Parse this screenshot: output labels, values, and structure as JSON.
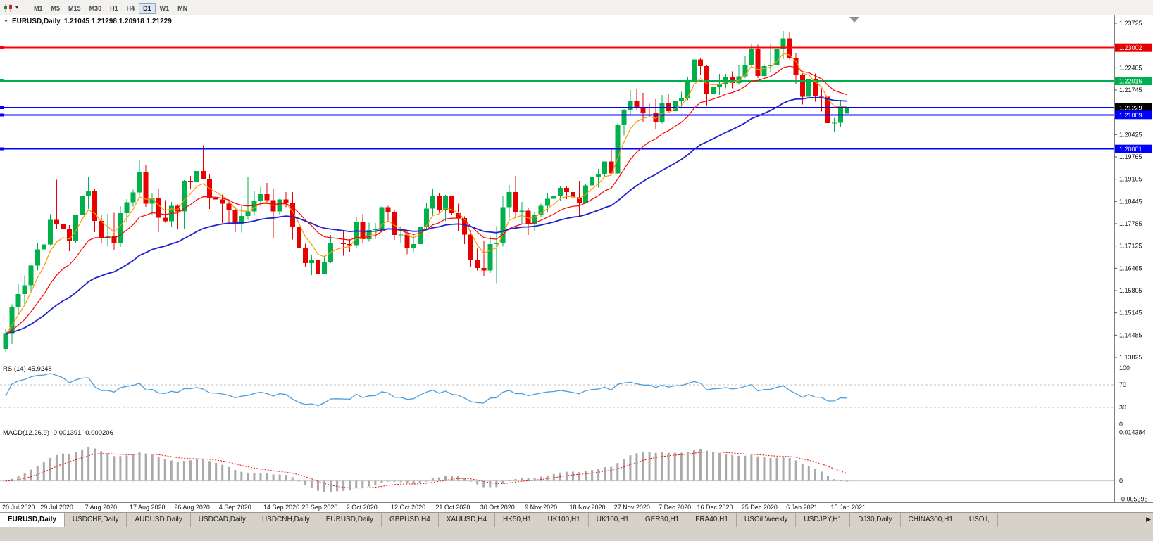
{
  "toolbar": {
    "dropdown_icon": "▾",
    "periods": [
      {
        "label": "M1",
        "active": false
      },
      {
        "label": "M5",
        "active": false
      },
      {
        "label": "M15",
        "active": false
      },
      {
        "label": "M30",
        "active": false
      },
      {
        "label": "H1",
        "active": false
      },
      {
        "label": "H4",
        "active": false
      },
      {
        "label": "D1",
        "active": true
      },
      {
        "label": "W1",
        "active": false
      },
      {
        "label": "MN",
        "active": false
      }
    ]
  },
  "chart": {
    "menu_icon": "▼",
    "title": "EURUSD,Daily",
    "ohlc": "1.21045 1.21298 1.20918 1.21229"
  },
  "rsi_panel": {
    "label": "RSI(14) 45,9248"
  },
  "macd_panel": {
    "label": "MACD(12,26,9) -0.001391 -0.000206"
  },
  "tab_bar": {
    "scroll_right_icon": "▶",
    "tabs": [
      {
        "label": "EURUSD,Daily",
        "active": true
      },
      {
        "label": "USDCHF,Daily",
        "active": false
      },
      {
        "label": "AUDUSD,Daily",
        "active": false
      },
      {
        "label": "USDCAD,Daily",
        "active": false
      },
      {
        "label": "USDCNH,Daily",
        "active": false
      },
      {
        "label": "EURUSD,Daily",
        "active": false
      },
      {
        "label": "GBPUSD,H4",
        "active": false
      },
      {
        "label": "XAUUSD,H4",
        "active": false
      },
      {
        "label": "HK50,H1",
        "active": false
      },
      {
        "label": "UK100,H1",
        "active": false
      },
      {
        "label": "UK100,H1",
        "active": false
      },
      {
        "label": "GER30,H1",
        "active": false
      },
      {
        "label": "FRA40,H1",
        "active": false
      },
      {
        "label": "USOil,Weekly",
        "active": false
      },
      {
        "label": "USDJPY,H1",
        "active": false
      },
      {
        "label": "DJ30,Daily",
        "active": false
      },
      {
        "label": "CHINA300,H1",
        "active": false
      },
      {
        "label": "USOil,",
        "active": false
      }
    ]
  },
  "chart_data": {
    "type": "candlestick",
    "symbol": "EURUSD",
    "timeframe": "Daily",
    "last_price": 1.21229,
    "ylim": [
      1.137,
      1.2395
    ],
    "colors": {
      "up": "#00b04a",
      "down": "#e60000",
      "background": "#ffffff"
    },
    "x_labels": [
      {
        "label": "20 Jul 2020",
        "index": 0
      },
      {
        "label": "29 Jul 2020",
        "index": 6
      },
      {
        "label": "7 Aug 2020",
        "index": 13
      },
      {
        "label": "17 Aug 2020",
        "index": 20
      },
      {
        "label": "26 Aug 2020",
        "index": 27
      },
      {
        "label": "4 Sep 2020",
        "index": 34
      },
      {
        "label": "14 Sep 2020",
        "index": 41
      },
      {
        "label": "23 Sep 2020",
        "index": 47
      },
      {
        "label": "2 Oct 2020",
        "index": 54
      },
      {
        "label": "12 Oct 2020",
        "index": 61
      },
      {
        "label": "21 Oct 2020",
        "index": 68
      },
      {
        "label": "30 Oct 2020",
        "index": 75
      },
      {
        "label": "9 Nov 2020",
        "index": 82
      },
      {
        "label": "18 Nov 2020",
        "index": 89
      },
      {
        "label": "27 Nov 2020",
        "index": 96
      },
      {
        "label": "7 Dec 2020",
        "index": 103
      },
      {
        "label": "16 Dec 2020",
        "index": 109
      },
      {
        "label": "25 Dec 2020",
        "index": 116
      },
      {
        "label": "6 Jan 2021",
        "index": 123
      },
      {
        "label": "15 Jan 2021",
        "index": 130
      }
    ],
    "y_ticks": [
      "1.23725",
      "1.22405",
      "1.21745",
      "1.20425",
      "1.19765",
      "1.19105",
      "1.18445",
      "1.17785",
      "1.17125",
      "1.16465",
      "1.15805",
      "1.15145",
      "1.14485",
      "1.13825"
    ],
    "price_markers": [
      {
        "label": "1.23002",
        "color": "#e60000"
      },
      {
        "label": "1.22016",
        "color": "#00b050"
      },
      {
        "label": "1.21229",
        "color": "#000000"
      },
      {
        "label": "1.21009",
        "color": "#0000ff"
      },
      {
        "label": "1.20001",
        "color": "#0000ff"
      }
    ],
    "hlines": [
      {
        "price": 1.23002,
        "color": "#ff0000",
        "width": 2
      },
      {
        "price": 1.22016,
        "color": "#00b050",
        "width": 2
      },
      {
        "price": 1.2122,
        "color": "#0000ff",
        "width": 2
      },
      {
        "price": 1.21009,
        "color": "#0000ff",
        "width": 2
      },
      {
        "price": 1.20001,
        "color": "#0000ff",
        "width": 2
      }
    ],
    "moving_averages": [
      {
        "name": "fast-ma",
        "period": 5,
        "color": "#ff9900",
        "width": 1.2
      },
      {
        "name": "medium-ma",
        "period": 13,
        "color": "#ff0000",
        "width": 1.2
      },
      {
        "name": "slow-ma",
        "period": 34,
        "color": "#2222cc",
        "width": 1.8
      }
    ],
    "rsi": {
      "period": 14,
      "value": 45.9248,
      "color": "#4a9ede",
      "ylim": [
        0,
        100
      ],
      "levels": [
        70,
        30
      ],
      "axis_labels": [
        {
          "label": "100",
          "value": 100
        },
        {
          "label": "70",
          "value": 70
        },
        {
          "label": "30",
          "value": 30
        },
        {
          "label": "0",
          "value": 0
        }
      ]
    },
    "macd": {
      "fast": 12,
      "slow": 26,
      "signal": 9,
      "main_value": -0.001391,
      "signal_value": -0.000206,
      "ylim": [
        -0.0055,
        0.0145
      ],
      "hist_color": "#a9a9a9",
      "signal_color": "#ee0000",
      "axis_labels": [
        {
          "label": "0.014384",
          "value": 0.014384
        },
        {
          "label": "0",
          "value": 0
        },
        {
          "label": "-0.005396",
          "value": -0.005396
        }
      ]
    },
    "candles": [
      [
        1.1408,
        1.1467,
        1.14,
        1.1452
      ],
      [
        1.1452,
        1.154,
        1.1422,
        1.153
      ],
      [
        1.153,
        1.1601,
        1.1507,
        1.157
      ],
      [
        1.157,
        1.1625,
        1.154,
        1.1596
      ],
      [
        1.1596,
        1.1658,
        1.1581,
        1.1655
      ],
      [
        1.1655,
        1.1722,
        1.164,
        1.1702
      ],
      [
        1.1702,
        1.1773,
        1.1696,
        1.1717
      ],
      [
        1.1717,
        1.1807,
        1.1715,
        1.179
      ],
      [
        1.179,
        1.1909,
        1.1762,
        1.1778
      ],
      [
        1.1778,
        1.1798,
        1.1696,
        1.1762
      ],
      [
        1.1762,
        1.1774,
        1.1697,
        1.1726
      ],
      [
        1.1726,
        1.1806,
        1.172,
        1.1803
      ],
      [
        1.1803,
        1.1905,
        1.1793,
        1.1862
      ],
      [
        1.1862,
        1.1916,
        1.1822,
        1.1876
      ],
      [
        1.1876,
        1.1882,
        1.1754,
        1.1787
      ],
      [
        1.1787,
        1.1805,
        1.1722,
        1.1738
      ],
      [
        1.1738,
        1.1808,
        1.1711,
        1.1741
      ],
      [
        1.1741,
        1.1811,
        1.17,
        1.172
      ],
      [
        1.172,
        1.1831,
        1.171,
        1.181
      ],
      [
        1.181,
        1.1851,
        1.1782,
        1.1842
      ],
      [
        1.1842,
        1.188,
        1.183,
        1.1871
      ],
      [
        1.1871,
        1.1966,
        1.1863,
        1.1932
      ],
      [
        1.1932,
        1.1954,
        1.1829,
        1.1838
      ],
      [
        1.1838,
        1.1868,
        1.1805,
        1.1855
      ],
      [
        1.1855,
        1.1882,
        1.1754,
        1.1796
      ],
      [
        1.1796,
        1.1848,
        1.1782,
        1.1786
      ],
      [
        1.1786,
        1.1843,
        1.177,
        1.1832
      ],
      [
        1.1832,
        1.1836,
        1.1763,
        1.1815
      ],
      [
        1.1815,
        1.1908,
        1.1762,
        1.1906
      ],
      [
        1.1906,
        1.192,
        1.1882,
        1.1904
      ],
      [
        1.1904,
        1.1965,
        1.19,
        1.1935
      ],
      [
        1.1935,
        1.2011,
        1.1928,
        1.1912
      ],
      [
        1.1912,
        1.1927,
        1.1822,
        1.1855
      ],
      [
        1.1855,
        1.1868,
        1.1789,
        1.185
      ],
      [
        1.185,
        1.1865,
        1.1781,
        1.1838
      ],
      [
        1.1838,
        1.185,
        1.1781,
        1.1818
      ],
      [
        1.1818,
        1.1828,
        1.1753,
        1.1778
      ],
      [
        1.1778,
        1.1834,
        1.1752,
        1.1801
      ],
      [
        1.1801,
        1.1917,
        1.179,
        1.1815
      ],
      [
        1.1815,
        1.1875,
        1.1805,
        1.1845
      ],
      [
        1.1845,
        1.1888,
        1.1832,
        1.1866
      ],
      [
        1.1866,
        1.1899,
        1.1837,
        1.1848
      ],
      [
        1.1848,
        1.1882,
        1.1737,
        1.1815
      ],
      [
        1.1815,
        1.1852,
        1.1806,
        1.185
      ],
      [
        1.185,
        1.1872,
        1.1827,
        1.184
      ],
      [
        1.184,
        1.1872,
        1.1732,
        1.177
      ],
      [
        1.177,
        1.1784,
        1.1692,
        1.1708
      ],
      [
        1.1708,
        1.1719,
        1.1651,
        1.1662
      ],
      [
        1.1662,
        1.1686,
        1.1626,
        1.167
      ],
      [
        1.167,
        1.1687,
        1.1612,
        1.163
      ],
      [
        1.163,
        1.1684,
        1.1628,
        1.1665
      ],
      [
        1.1665,
        1.1745,
        1.1662,
        1.172
      ],
      [
        1.172,
        1.1755,
        1.17,
        1.1722
      ],
      [
        1.1722,
        1.176,
        1.1684,
        1.1718
      ],
      [
        1.1718,
        1.1733,
        1.1695,
        1.1715
      ],
      [
        1.1715,
        1.1798,
        1.1708,
        1.1785
      ],
      [
        1.1785,
        1.1807,
        1.172,
        1.1733
      ],
      [
        1.1733,
        1.1782,
        1.1725,
        1.176
      ],
      [
        1.176,
        1.1781,
        1.1733,
        1.1762
      ],
      [
        1.1762,
        1.1831,
        1.1752,
        1.1828
      ],
      [
        1.1828,
        1.1832,
        1.1785,
        1.1812
      ],
      [
        1.1812,
        1.1818,
        1.1731,
        1.1745
      ],
      [
        1.1745,
        1.1771,
        1.172,
        1.1746
      ],
      [
        1.1746,
        1.1758,
        1.1688,
        1.1708
      ],
      [
        1.1708,
        1.1748,
        1.1694,
        1.1718
      ],
      [
        1.1718,
        1.1794,
        1.1703,
        1.177
      ],
      [
        1.177,
        1.184,
        1.1763,
        1.1823
      ],
      [
        1.1823,
        1.1881,
        1.1806,
        1.1862
      ],
      [
        1.1862,
        1.1868,
        1.1811,
        1.1818
      ],
      [
        1.1818,
        1.1864,
        1.1786,
        1.186
      ],
      [
        1.186,
        1.1862,
        1.1803,
        1.181
      ],
      [
        1.181,
        1.1838,
        1.1756,
        1.1795
      ],
      [
        1.1795,
        1.18,
        1.1718,
        1.1746
      ],
      [
        1.1746,
        1.1759,
        1.165,
        1.1672
      ],
      [
        1.1672,
        1.1704,
        1.164,
        1.1647
      ],
      [
        1.1647,
        1.1726,
        1.1623,
        1.164
      ],
      [
        1.164,
        1.1742,
        1.1633,
        1.1718
      ],
      [
        1.1718,
        1.1771,
        1.1602,
        1.172
      ],
      [
        1.172,
        1.186,
        1.1711,
        1.1828
      ],
      [
        1.1828,
        1.1893,
        1.1795,
        1.1872
      ],
      [
        1.1872,
        1.192,
        1.1795,
        1.1813
      ],
      [
        1.1813,
        1.1843,
        1.1779,
        1.1817
      ],
      [
        1.1817,
        1.1824,
        1.1745,
        1.1777
      ],
      [
        1.1777,
        1.1813,
        1.1758,
        1.1805
      ],
      [
        1.1805,
        1.1838,
        1.1799,
        1.1832
      ],
      [
        1.1832,
        1.1869,
        1.1814,
        1.1852
      ],
      [
        1.1852,
        1.1894,
        1.1849,
        1.1862
      ],
      [
        1.1862,
        1.1891,
        1.1847,
        1.1885
      ],
      [
        1.1885,
        1.1891,
        1.1851,
        1.1872
      ],
      [
        1.1872,
        1.189,
        1.1849,
        1.1857
      ],
      [
        1.1857,
        1.1906,
        1.18,
        1.184
      ],
      [
        1.184,
        1.1895,
        1.1838,
        1.1892
      ],
      [
        1.1892,
        1.193,
        1.188,
        1.1916
      ],
      [
        1.1916,
        1.1941,
        1.1886,
        1.1925
      ],
      [
        1.1925,
        1.1963,
        1.1917,
        1.1963
      ],
      [
        1.1963,
        1.2003,
        1.1923,
        1.1928
      ],
      [
        1.1928,
        1.2076,
        1.1924,
        1.2072
      ],
      [
        1.2072,
        1.2118,
        1.204,
        1.2115
      ],
      [
        1.2115,
        1.2175,
        1.21,
        1.2142
      ],
      [
        1.2142,
        1.2177,
        1.2115,
        1.2122
      ],
      [
        1.2122,
        1.2166,
        1.2079,
        1.2108
      ],
      [
        1.2108,
        1.2134,
        1.2095,
        1.2107
      ],
      [
        1.2107,
        1.2147,
        1.2058,
        1.208
      ],
      [
        1.208,
        1.216,
        1.2076,
        1.2135
      ],
      [
        1.2135,
        1.2163,
        1.211,
        1.2112
      ],
      [
        1.2112,
        1.217,
        1.211,
        1.2142
      ],
      [
        1.2142,
        1.2169,
        1.2122,
        1.215
      ],
      [
        1.215,
        1.2212,
        1.2144,
        1.22
      ],
      [
        1.22,
        1.2272,
        1.2195,
        1.2265
      ],
      [
        1.2265,
        1.2268,
        1.2218,
        1.2245
      ],
      [
        1.2245,
        1.225,
        1.2129,
        1.2162
      ],
      [
        1.2162,
        1.2212,
        1.2152,
        1.2185
      ],
      [
        1.2185,
        1.2222,
        1.216,
        1.2192
      ],
      [
        1.2192,
        1.2222,
        1.218,
        1.2213
      ],
      [
        1.2213,
        1.223,
        1.218,
        1.2195
      ],
      [
        1.2195,
        1.225,
        1.219,
        1.2215
      ],
      [
        1.2215,
        1.2276,
        1.221,
        1.225
      ],
      [
        1.225,
        1.231,
        1.2243,
        1.2296
      ],
      [
        1.2296,
        1.2309,
        1.221,
        1.2216
      ],
      [
        1.2216,
        1.2251,
        1.2214,
        1.2245
      ],
      [
        1.2245,
        1.2311,
        1.2228,
        1.225
      ],
      [
        1.225,
        1.2295,
        1.2247,
        1.2295
      ],
      [
        1.2295,
        1.235,
        1.2266,
        1.2328
      ],
      [
        1.2328,
        1.2346,
        1.2265,
        1.227
      ],
      [
        1.227,
        1.2285,
        1.2193,
        1.222
      ],
      [
        1.222,
        1.2223,
        1.2132,
        1.2155
      ],
      [
        1.2155,
        1.2208,
        1.2137,
        1.2208
      ],
      [
        1.2208,
        1.2223,
        1.214,
        1.2158
      ],
      [
        1.2158,
        1.218,
        1.2111,
        1.2155
      ],
      [
        1.2155,
        1.216,
        1.2075,
        1.2077
      ],
      [
        1.2077,
        1.2092,
        1.2052,
        1.2078
      ],
      [
        1.2078,
        1.2145,
        1.2066,
        1.2129
      ],
      [
        1.21045,
        1.21298,
        1.20918,
        1.21229
      ]
    ]
  }
}
